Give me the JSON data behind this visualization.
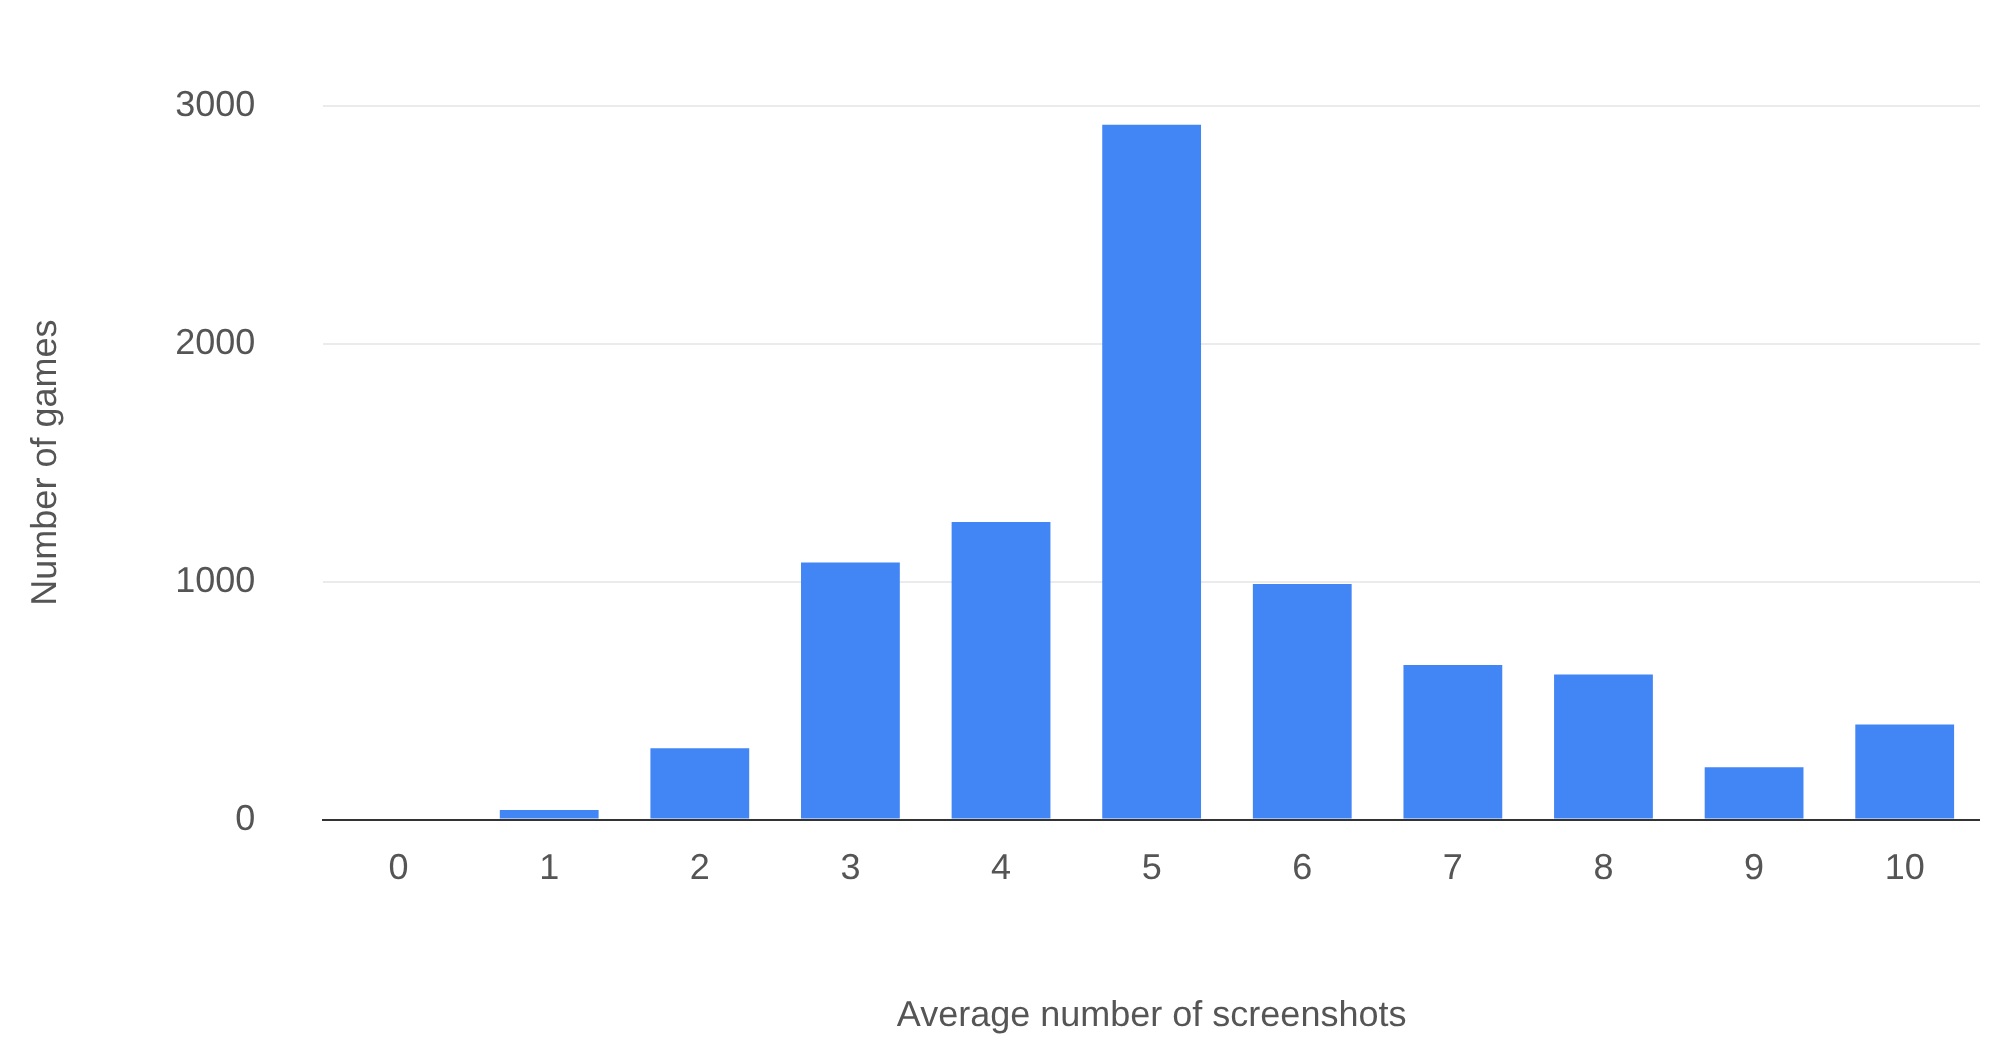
{
  "chart_data": {
    "type": "bar",
    "categories": [
      "0",
      "1",
      "2",
      "3",
      "4",
      "5",
      "6",
      "7",
      "8",
      "9",
      "10"
    ],
    "values": [
      0,
      40,
      300,
      1080,
      1250,
      2920,
      990,
      650,
      610,
      220,
      400
    ],
    "color": "#4285f4",
    "xlabel": "Average number of screenshots",
    "ylabel": "Number of games",
    "ylim": [
      0,
      3000
    ],
    "yticks": [
      0,
      1000,
      2000,
      3000
    ],
    "grid": "y"
  }
}
